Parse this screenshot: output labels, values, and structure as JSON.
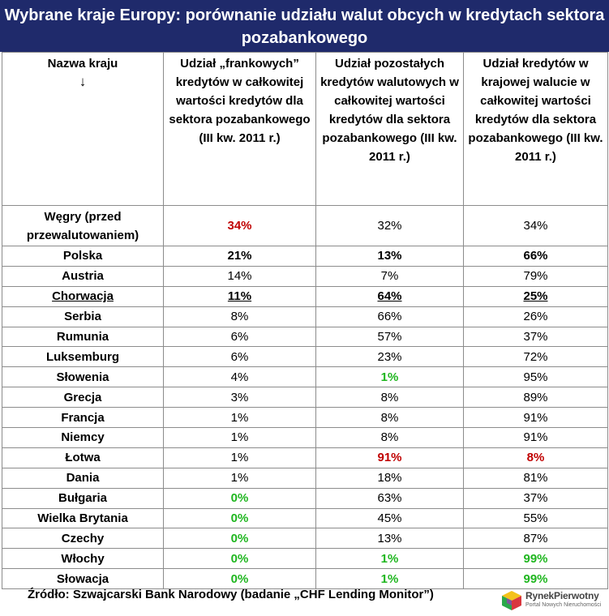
{
  "title": "Wybrane kraje Europy: porównanie udziału walut obcych w kredytach sektora pozabankowego",
  "columns": {
    "country": "Nazwa kraju",
    "country_arrow": "↓",
    "chf": "Udział „frankowych” kredytów w całkowitej wartości kredytów dla sektora pozabankowego (III kw. 2011 r.)",
    "other_fx": "Udział pozostałych kredytów walutowych w całkowitej wartości kredytów dla sektora pozabankowego (III kw. 2011 r.)",
    "local": "Udział kredytów w krajowej walucie w całkowitej wartości kredytów dla sektora pozabankowego (III kw. 2011 r.)"
  },
  "chart_data": {
    "type": "table",
    "title": "Wybrane kraje Europy: porównanie udziału walut obcych w kredytach sektora pozabankowego",
    "rows": [
      {
        "country": "Węgry (przed przewalutowaniem)",
        "chf": "34%",
        "other_fx": "32%",
        "local": "34%",
        "style": {
          "chf": "red"
        }
      },
      {
        "country": "Polska",
        "chf": "21%",
        "other_fx": "13%",
        "local": "66%",
        "style": {
          "chf": "bold",
          "other_fx": "bold",
          "local": "bold"
        }
      },
      {
        "country": "Austria",
        "chf": "14%",
        "other_fx": "7%",
        "local": "79%",
        "style": {}
      },
      {
        "country": "Chorwacja",
        "chf": "11%",
        "other_fx": "64%",
        "local": "25%",
        "style": {
          "country": "underline",
          "chf": "underline",
          "other_fx": "underline",
          "local": "underline"
        }
      },
      {
        "country": "Serbia",
        "chf": "8%",
        "other_fx": "66%",
        "local": "26%",
        "style": {}
      },
      {
        "country": "Rumunia",
        "chf": "6%",
        "other_fx": "57%",
        "local": "37%",
        "style": {}
      },
      {
        "country": "Luksemburg",
        "chf": "6%",
        "other_fx": "23%",
        "local": "72%",
        "style": {}
      },
      {
        "country": "Słowenia",
        "chf": "4%",
        "other_fx": "1%",
        "local": "95%",
        "style": {
          "other_fx": "green"
        }
      },
      {
        "country": "Grecja",
        "chf": "3%",
        "other_fx": "8%",
        "local": "89%",
        "style": {}
      },
      {
        "country": "Francja",
        "chf": "1%",
        "other_fx": "8%",
        "local": "91%",
        "style": {}
      },
      {
        "country": "Niemcy",
        "chf": "1%",
        "other_fx": "8%",
        "local": "91%",
        "style": {}
      },
      {
        "country": "Łotwa",
        "chf": "1%",
        "other_fx": "91%",
        "local": "8%",
        "style": {
          "other_fx": "red",
          "local": "red"
        }
      },
      {
        "country": "Dania",
        "chf": "1%",
        "other_fx": "18%",
        "local": "81%",
        "style": {}
      },
      {
        "country": "Bułgaria",
        "chf": "0%",
        "other_fx": "63%",
        "local": "37%",
        "style": {
          "chf": "green"
        }
      },
      {
        "country": "Wielka Brytania",
        "chf": "0%",
        "other_fx": "45%",
        "local": "55%",
        "style": {
          "chf": "green"
        }
      },
      {
        "country": "Czechy",
        "chf": "0%",
        "other_fx": "13%",
        "local": "87%",
        "style": {
          "chf": "green"
        }
      },
      {
        "country": "Włochy",
        "chf": "0%",
        "other_fx": "1%",
        "local": "99%",
        "style": {
          "chf": "green",
          "other_fx": "green",
          "local": "green"
        }
      },
      {
        "country": "Słowacja",
        "chf": "0%",
        "other_fx": "1%",
        "local": "99%",
        "style": {
          "chf": "green",
          "other_fx": "green",
          "local": "green"
        }
      }
    ]
  },
  "colors": {
    "title_bg": "#1f2a6b",
    "title_fg": "#ffffff",
    "highlight_red": "#c00000",
    "highlight_green": "#1fb61f",
    "border": "#8c8c8c"
  },
  "footer": {
    "source": "Źródło: Szwajcarski Bank Narodowy (badanie „CHF Lending Monitor”)"
  },
  "logo": {
    "brand": "RynekPierwotny",
    "tagline": "Portal Nowych Nieruchomości",
    "icon": "cube-logo-icon"
  }
}
